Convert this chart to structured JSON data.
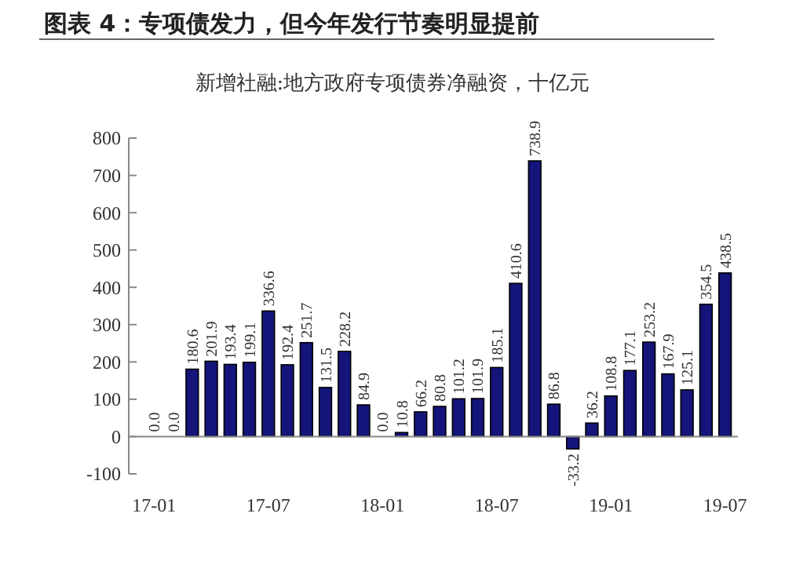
{
  "chart_data": {
    "type": "bar",
    "title": "图表 4：专项债发力，但今年发行节奏明显提前",
    "subtitle": "新增社融:地方政府专项债券净融资，十亿元",
    "categories": [
      "17-01",
      null,
      null,
      null,
      null,
      null,
      "17-07",
      null,
      null,
      null,
      null,
      null,
      "18-01",
      null,
      null,
      null,
      null,
      null,
      "18-07",
      null,
      null,
      null,
      null,
      null,
      "19-01",
      null,
      null,
      null,
      null,
      null,
      "19-07"
    ],
    "values": [
      0,
      0,
      180.6,
      201.9,
      193.4,
      199.1,
      336.6,
      192.4,
      251.7,
      131.5,
      228.2,
      84.9,
      0,
      10.8,
      66.2,
      80.8,
      101.2,
      101.9,
      185.1,
      410.6,
      738.9,
      86.8,
      -33.2,
      36.2,
      108.8,
      177.1,
      253.2,
      167.9,
      125.1,
      354.5,
      438.5
    ],
    "value_labels": [
      "0.0",
      "0.0",
      "180.6",
      "201.9",
      "193.4",
      "199.1",
      "336.6",
      "192.4",
      "251.7",
      "131.5",
      "228.2",
      "84.9",
      "0.0",
      "10.8",
      "66.2",
      "80.8",
      "101.2",
      "101.9",
      "185.1",
      "410.6",
      "738.9",
      "86.8",
      "-33.2",
      "36.2",
      "108.8",
      "177.1",
      "253.2",
      "167.9",
      "125.1",
      "354.5",
      "438.5"
    ],
    "color": "#14147a",
    "ylim": [
      -100,
      800
    ],
    "yticks": [
      -100,
      0,
      100,
      200,
      300,
      400,
      500,
      600,
      700,
      800
    ]
  }
}
